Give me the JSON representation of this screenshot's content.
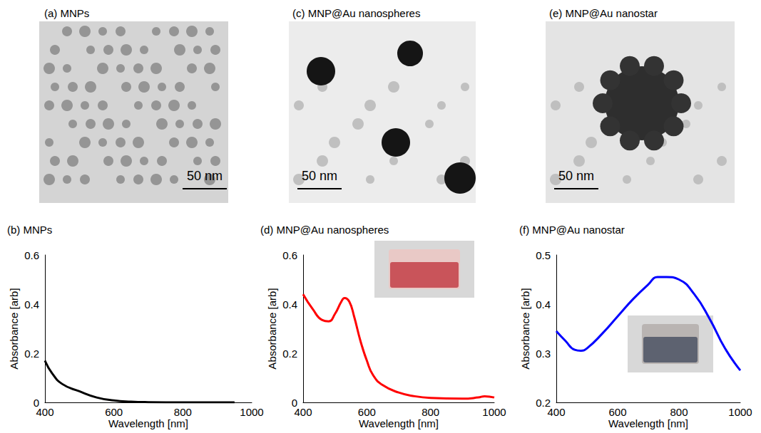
{
  "images": [
    {
      "title": "(a) MNPs",
      "scale_bar": "50 nm"
    },
    {
      "title": "(c) MNP@Au nanospheres",
      "scale_bar": "50 nm"
    },
    {
      "title": "(e) MNP@Au nanostar",
      "scale_bar": "50 nm"
    }
  ],
  "chart_data": [
    {
      "type": "line",
      "title": "(b) MNPs",
      "x_label": "Wavelength [nm]",
      "y_label": "Absorbance [arb]",
      "x": [
        400,
        420,
        450,
        500,
        550,
        600,
        650,
        700,
        800,
        950
      ],
      "values": [
        0.17,
        0.12,
        0.075,
        0.045,
        0.02,
        0.008,
        0.003,
        0.001,
        0,
        0
      ],
      "color": "#000000",
      "xlim": [
        400,
        1000
      ],
      "xticks": [
        400,
        600,
        800,
        1000
      ],
      "ylim": [
        0,
        0.6
      ],
      "yticks": [
        0,
        0.2,
        0.4,
        0.6
      ],
      "grid": false
    },
    {
      "type": "line",
      "title": "(d) MNP@Au nanospheres",
      "x_label": "Wavelength [nm]",
      "y_label": "Absorbance [arb]",
      "x": [
        400,
        430,
        460,
        480,
        500,
        520,
        530,
        545,
        560,
        580,
        600,
        620,
        650,
        700,
        750,
        800,
        900,
        950,
        970,
        1000
      ],
      "values": [
        0.44,
        0.38,
        0.335,
        0.33,
        0.36,
        0.41,
        0.425,
        0.41,
        0.35,
        0.25,
        0.17,
        0.11,
        0.07,
        0.04,
        0.025,
        0.018,
        0.015,
        0.02,
        0.025,
        0.02
      ],
      "color": "#ff0000",
      "xlim": [
        400,
        1000
      ],
      "xticks": [
        400,
        600,
        800,
        1000
      ],
      "ylim": [
        0,
        0.6
      ],
      "yticks": [
        0,
        0.2,
        0.4,
        0.6
      ],
      "grid": false
    },
    {
      "type": "line",
      "title": "(f) MNP@Au nanostar",
      "x_label": "Wavelength [nm]",
      "y_label": "Absorbance [arb]",
      "x": [
        400,
        430,
        460,
        480,
        500,
        550,
        600,
        650,
        700,
        730,
        760,
        800,
        850,
        900,
        950,
        1000
      ],
      "values": [
        0.345,
        0.325,
        0.307,
        0.305,
        0.31,
        0.34,
        0.375,
        0.41,
        0.44,
        0.455,
        0.455,
        0.45,
        0.42,
        0.37,
        0.31,
        0.265
      ],
      "color": "#0000ff",
      "xlim": [
        400,
        1000
      ],
      "xticks": [
        400,
        600,
        800,
        1000
      ],
      "ylim": [
        0.2,
        0.5
      ],
      "yticks": [
        0.2,
        0.3,
        0.4,
        0.5
      ],
      "grid": false
    }
  ]
}
